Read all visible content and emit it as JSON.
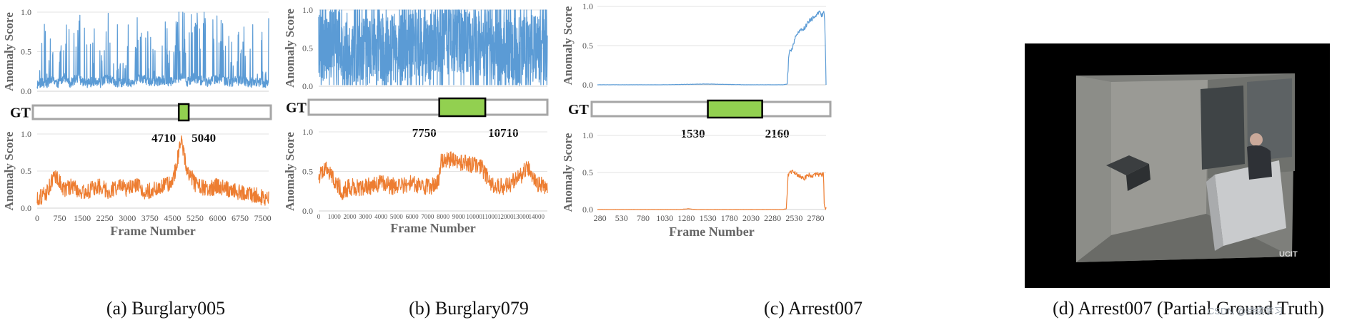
{
  "colors": {
    "blue": "#5b9bd5",
    "orange": "#ed7d31",
    "gt_fill": "#92d050",
    "gt_border": "#a6a6a6",
    "grid": "#e3e3e3"
  },
  "gt_label": "GT",
  "y_ticks": [
    "0.0",
    "0.5",
    "1.0"
  ],
  "watermark": "CSDN @持续学习",
  "panels": [
    {
      "id": "a",
      "caption": "(a) Burglary005",
      "gt": {
        "start": 4710,
        "end": 5040,
        "start_label": "4710",
        "end_label": "5040"
      },
      "chart_data": [
        {
          "type": "line",
          "title": "",
          "xlabel": "Frame  Number",
          "ylabel": "Anomaly  Score",
          "xlim": [
            0,
            7700
          ],
          "ylim": [
            0,
            1
          ],
          "grid": true,
          "x_ticks": [
            "0",
            "750",
            "1500",
            "2250",
            "3000",
            "3750",
            "4500",
            "5250",
            "6000",
            "6750",
            "7500"
          ],
          "show_x_ticks": false,
          "series": [
            {
              "color": "blue",
              "profile": "spiky",
              "points": [
                [
                  0,
                  0.05
                ],
                [
                  150,
                  0.35
                ],
                [
                  300,
                  0.1
                ],
                [
                  500,
                  0.8
                ],
                [
                  700,
                  0.15
                ],
                [
                  900,
                  0.95
                ],
                [
                  1100,
                  0.2
                ],
                [
                  1350,
                  0.9
                ],
                [
                  1600,
                  0.15
                ],
                [
                  1900,
                  0.45
                ],
                [
                  2100,
                  0.2
                ],
                [
                  2300,
                  0.85
                ],
                [
                  2600,
                  0.25
                ],
                [
                  2900,
                  0.3
                ],
                [
                  3200,
                  0.15
                ],
                [
                  3400,
                  0.95
                ],
                [
                  3800,
                  0.3
                ],
                [
                  4200,
                  0.6
                ],
                [
                  4500,
                  0.35
                ],
                [
                  4800,
                  1.0
                ],
                [
                  5000,
                  0.4
                ],
                [
                  5200,
                  0.95
                ],
                [
                  5600,
                  0.3
                ],
                [
                  6000,
                  0.85
                ],
                [
                  6400,
                  0.35
                ],
                [
                  6800,
                  0.6
                ],
                [
                  7100,
                  0.25
                ],
                [
                  7500,
                  0.3
                ],
                [
                  7700,
                  0.1
                ]
              ]
            }
          ]
        },
        {
          "type": "line",
          "title": "",
          "xlabel": "Frame  Number",
          "ylabel": "Anomaly  Score",
          "xlim": [
            0,
            7700
          ],
          "ylim": [
            0,
            1
          ],
          "grid": true,
          "x_ticks": [
            "0",
            "750",
            "1500",
            "2250",
            "3000",
            "3750",
            "4500",
            "5250",
            "6000",
            "6750",
            "7500"
          ],
          "show_x_ticks": true,
          "series": [
            {
              "color": "orange",
              "profile": "noisy",
              "points": [
                [
                  0,
                  0.12
                ],
                [
                  300,
                  0.2
                ],
                [
                  600,
                  0.45
                ],
                [
                  900,
                  0.25
                ],
                [
                  1200,
                  0.3
                ],
                [
                  1500,
                  0.2
                ],
                [
                  1800,
                  0.25
                ],
                [
                  2100,
                  0.3
                ],
                [
                  2400,
                  0.22
                ],
                [
                  2700,
                  0.3
                ],
                [
                  3000,
                  0.25
                ],
                [
                  3300,
                  0.3
                ],
                [
                  3600,
                  0.22
                ],
                [
                  3900,
                  0.25
                ],
                [
                  4200,
                  0.3
                ],
                [
                  4500,
                  0.35
                ],
                [
                  4800,
                  0.9
                ],
                [
                  5000,
                  0.5
                ],
                [
                  5300,
                  0.3
                ],
                [
                  5700,
                  0.25
                ],
                [
                  6000,
                  0.3
                ],
                [
                  6400,
                  0.25
                ],
                [
                  6800,
                  0.2
                ],
                [
                  7200,
                  0.18
                ],
                [
                  7700,
                  0.12
                ]
              ]
            }
          ]
        }
      ]
    },
    {
      "id": "b",
      "caption": "(b) Burglary079",
      "gt": {
        "start": 7750,
        "end": 10710,
        "start_label": "7750",
        "end_label": "10710"
      },
      "chart_data": [
        {
          "type": "line",
          "title": "",
          "xlabel": "Frame  Number",
          "ylabel": "Anomaly  Score",
          "xlim": [
            0,
            14700
          ],
          "ylim": [
            0,
            1
          ],
          "grid": true,
          "x_ticks": [
            "0",
            "1000",
            "2000",
            "3000",
            "4000",
            "5000",
            "6000",
            "7000",
            "8000",
            "9000",
            "10000",
            "11000",
            "12000",
            "13000",
            "14000"
          ],
          "show_x_ticks": false,
          "series": [
            {
              "color": "blue",
              "profile": "dense",
              "points": [
                [
                  0,
                  0.5
                ],
                [
                  1000,
                  0.55
                ],
                [
                  2000,
                  0.5
                ],
                [
                  3000,
                  0.45
                ],
                [
                  4000,
                  0.5
                ],
                [
                  5000,
                  0.5
                ],
                [
                  6000,
                  0.55
                ],
                [
                  7000,
                  0.5
                ],
                [
                  7750,
                  0.6
                ],
                [
                  9000,
                  0.6
                ],
                [
                  10700,
                  0.55
                ],
                [
                  12000,
                  0.5
                ],
                [
                  13000,
                  0.45
                ],
                [
                  14000,
                  0.5
                ],
                [
                  14700,
                  0.45
                ]
              ]
            }
          ]
        },
        {
          "type": "line",
          "title": "",
          "xlabel": "Frame  Number",
          "ylabel": "Anomaly  Score",
          "xlim": [
            0,
            14700
          ],
          "ylim": [
            0,
            1
          ],
          "grid": true,
          "x_ticks": [
            "0",
            "1000",
            "2000",
            "3000",
            "4000",
            "5000",
            "6000",
            "7000",
            "8000",
            "9000",
            "10000",
            "11000",
            "12000",
            "13000",
            "14000"
          ],
          "show_x_ticks": true,
          "series": [
            {
              "color": "orange",
              "profile": "noisy",
              "points": [
                [
                  0,
                  0.45
                ],
                [
                  500,
                  0.55
                ],
                [
                  1000,
                  0.4
                ],
                [
                  1500,
                  0.25
                ],
                [
                  2000,
                  0.3
                ],
                [
                  3000,
                  0.3
                ],
                [
                  4000,
                  0.35
                ],
                [
                  5000,
                  0.3
                ],
                [
                  6000,
                  0.35
                ],
                [
                  7000,
                  0.3
                ],
                [
                  7700,
                  0.35
                ],
                [
                  7900,
                  0.65
                ],
                [
                  8500,
                  0.65
                ],
                [
                  9500,
                  0.6
                ],
                [
                  10500,
                  0.55
                ],
                [
                  11000,
                  0.35
                ],
                [
                  12000,
                  0.3
                ],
                [
                  13000,
                  0.45
                ],
                [
                  13500,
                  0.55
                ],
                [
                  14000,
                  0.35
                ],
                [
                  14700,
                  0.3
                ]
              ]
            }
          ]
        }
      ]
    },
    {
      "id": "c",
      "caption": "(c) Arrest007",
      "gt": {
        "start": 1530,
        "end": 2160,
        "start_label": "1530",
        "end_label": "2160"
      },
      "chart_data": [
        {
          "type": "line",
          "title": "",
          "xlabel": "Frame  Number",
          "ylabel": "Anomaly  Score",
          "xlim": [
            250,
            2900
          ],
          "ylim": [
            0,
            1
          ],
          "grid": true,
          "x_ticks": [
            "280",
            "530",
            "780",
            "1030",
            "1280",
            "1530",
            "1780",
            "2030",
            "2280",
            "2530",
            "2780"
          ],
          "show_x_ticks": false,
          "series": [
            {
              "color": "blue",
              "profile": "smooth",
              "points": [
                [
                  250,
                  0.0
                ],
                [
                  1000,
                  0.0
                ],
                [
                  1500,
                  0.01
                ],
                [
                  2000,
                  0.0
                ],
                [
                  2400,
                  0.0
                ],
                [
                  2450,
                  0.01
                ],
                [
                  2470,
                  0.4
                ],
                [
                  2500,
                  0.45
                ],
                [
                  2550,
                  0.62
                ],
                [
                  2600,
                  0.7
                ],
                [
                  2650,
                  0.72
                ],
                [
                  2700,
                  0.82
                ],
                [
                  2750,
                  0.85
                ],
                [
                  2800,
                  0.9
                ],
                [
                  2830,
                  0.92
                ],
                [
                  2860,
                  0.88
                ],
                [
                  2880,
                  0.93
                ],
                [
                  2890,
                  0.6
                ],
                [
                  2900,
                  0.0
                ]
              ]
            }
          ]
        },
        {
          "type": "line",
          "title": "",
          "xlabel": "Frame  Number",
          "ylabel": "Anomaly  Score",
          "xlim": [
            250,
            2900
          ],
          "ylim": [
            0,
            1
          ],
          "grid": true,
          "x_ticks": [
            "280",
            "530",
            "780",
            "1030",
            "1280",
            "1530",
            "1780",
            "2030",
            "2280",
            "2530",
            "2780"
          ],
          "show_x_ticks": true,
          "series": [
            {
              "color": "orange",
              "profile": "smooth",
              "points": [
                [
                  250,
                  0.0
                ],
                [
                  1200,
                  0.0
                ],
                [
                  1300,
                  0.01
                ],
                [
                  1400,
                  0.0
                ],
                [
                  2400,
                  0.0
                ],
                [
                  2440,
                  0.01
                ],
                [
                  2460,
                  0.45
                ],
                [
                  2500,
                  0.52
                ],
                [
                  2550,
                  0.48
                ],
                [
                  2600,
                  0.45
                ],
                [
                  2650,
                  0.42
                ],
                [
                  2700,
                  0.47
                ],
                [
                  2750,
                  0.45
                ],
                [
                  2800,
                  0.48
                ],
                [
                  2850,
                  0.46
                ],
                [
                  2870,
                  0.48
                ],
                [
                  2880,
                  0.05
                ],
                [
                  2895,
                  0.0
                ],
                [
                  2900,
                  0.03
                ]
              ]
            }
          ]
        }
      ]
    },
    {
      "id": "d",
      "caption": "(d) Arrest007 (Partial Ground Truth)",
      "image_logo": "UCIT"
    }
  ]
}
